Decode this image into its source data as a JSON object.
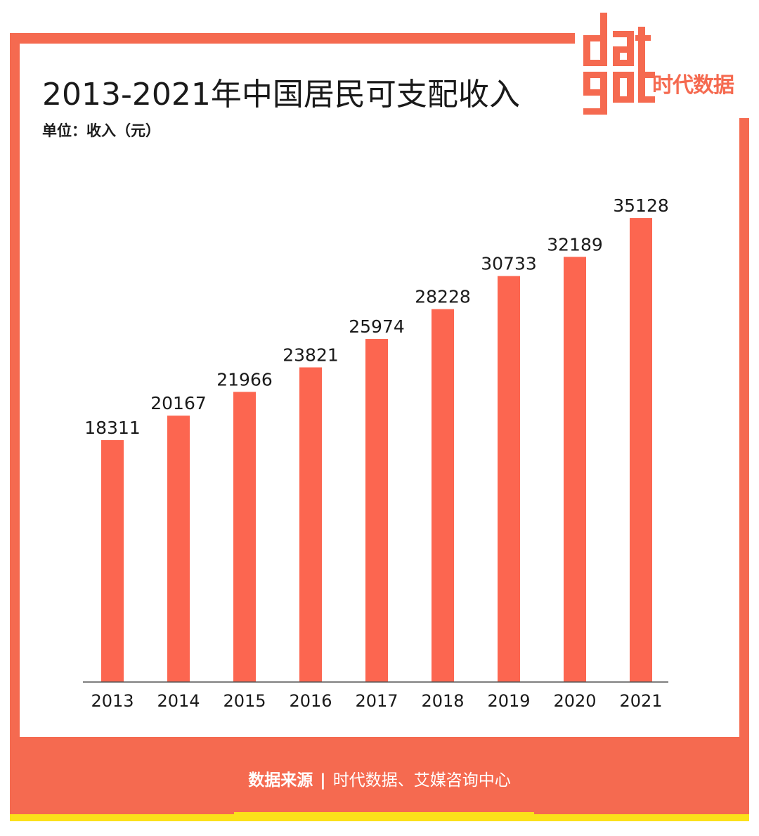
{
  "title": "2013-2021年中国居民可支配收入",
  "unit": "单位：收入（元）",
  "logo": {
    "text": "datagod",
    "cn": "时代数据"
  },
  "footer": {
    "label": "数据来源",
    "separator": "|",
    "source": "时代数据、艾媒咨询中心"
  },
  "colors": {
    "accent": "#f56a50",
    "bar": "#fc6650",
    "yellow": "#fbe11a"
  },
  "chart_data": {
    "type": "bar",
    "title": "2013-2021年中国居民可支配收入",
    "xlabel": "",
    "ylabel": "",
    "categories": [
      "2013",
      "2014",
      "2015",
      "2016",
      "2017",
      "2018",
      "2019",
      "2020",
      "2021"
    ],
    "values": [
      18311,
      20167,
      21966,
      23821,
      25974,
      28228,
      30733,
      32189,
      35128
    ],
    "grid": false
  }
}
